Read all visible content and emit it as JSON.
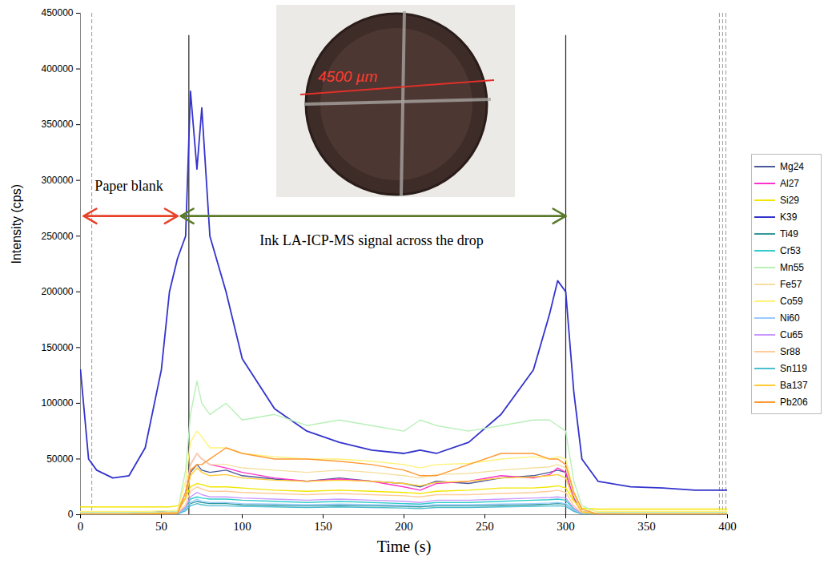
{
  "chart_data": {
    "type": "line",
    "xlabel": "Time (s)",
    "ylabel": "Intensity (cps)",
    "xlim": [
      0,
      400
    ],
    "xticks": [
      0,
      50,
      100,
      150,
      200,
      250,
      300,
      350,
      400
    ],
    "ylim": [
      0,
      450000
    ],
    "yticks": [
      0,
      50000,
      100000,
      150000,
      200000,
      250000,
      300000,
      350000,
      400000,
      450000
    ],
    "grid": false,
    "legend": "right",
    "x": [
      0,
      5,
      10,
      20,
      30,
      40,
      50,
      55,
      60,
      65,
      68,
      72,
      75,
      80,
      90,
      100,
      120,
      140,
      160,
      180,
      200,
      210,
      220,
      240,
      260,
      280,
      290,
      295,
      300,
      305,
      310,
      320,
      340,
      360,
      380,
      400
    ],
    "series": [
      {
        "name": "Mg24",
        "color": "#4b5a9b",
        "values": [
          500,
          500,
          500,
          500,
          800,
          1500,
          3000,
          2000,
          3000,
          15000,
          38000,
          45000,
          40000,
          38000,
          40000,
          35000,
          32000,
          30000,
          33000,
          30000,
          28000,
          25000,
          30000,
          28000,
          33000,
          35000,
          38000,
          40000,
          38000,
          15000,
          3000,
          800,
          500,
          500,
          500,
          500
        ]
      },
      {
        "name": "Al27",
        "color": "#ff33cc",
        "values": [
          300,
          300,
          300,
          300,
          500,
          1000,
          2000,
          2000,
          3000,
          20000,
          45000,
          55000,
          50000,
          45000,
          42000,
          38000,
          33000,
          30000,
          32000,
          30000,
          25000,
          22000,
          28000,
          30000,
          35000,
          33000,
          36000,
          42000,
          38000,
          14000,
          2000,
          500,
          300,
          300,
          300,
          300
        ]
      },
      {
        "name": "Si29",
        "color": "#f2e600",
        "values": [
          7000,
          7000,
          7000,
          7000,
          7000,
          7000,
          7000,
          7000,
          8000,
          15000,
          25000,
          28000,
          27000,
          25000,
          25000,
          24000,
          22000,
          21000,
          22000,
          21000,
          20000,
          19000,
          21000,
          22000,
          24000,
          24000,
          25000,
          26000,
          24000,
          12000,
          6000,
          5000,
          5000,
          5000,
          5000,
          5000
        ]
      },
      {
        "name": "K39",
        "color": "#3333cc",
        "values": [
          130000,
          50000,
          40000,
          33000,
          35000,
          60000,
          130000,
          200000,
          230000,
          250000,
          380000,
          310000,
          365000,
          250000,
          200000,
          140000,
          95000,
          75000,
          65000,
          58000,
          55000,
          58000,
          55000,
          65000,
          90000,
          130000,
          180000,
          210000,
          200000,
          110000,
          50000,
          30000,
          25000,
          24000,
          22000,
          22000
        ]
      },
      {
        "name": "Ti49",
        "color": "#339999",
        "values": [
          200,
          200,
          200,
          200,
          200,
          300,
          500,
          500,
          800,
          5000,
          10000,
          12000,
          11000,
          10000,
          10000,
          9000,
          8500,
          8000,
          8500,
          8000,
          7500,
          7000,
          8000,
          8000,
          8500,
          9000,
          9500,
          10000,
          9500,
          4000,
          800,
          200,
          200,
          200,
          200,
          200
        ]
      },
      {
        "name": "Cr53",
        "color": "#33cccc",
        "values": [
          300,
          300,
          300,
          300,
          300,
          500,
          800,
          800,
          1200,
          6000,
          14000,
          16000,
          15000,
          14000,
          14000,
          13000,
          12000,
          11000,
          12000,
          11000,
          10000,
          9500,
          11000,
          11000,
          12000,
          13000,
          13500,
          14000,
          13000,
          5000,
          1000,
          300,
          300,
          300,
          300,
          300
        ]
      },
      {
        "name": "Mn55",
        "color": "#b8f0b8",
        "values": [
          2000,
          2000,
          2000,
          2000,
          2000,
          2000,
          2500,
          2500,
          3000,
          40000,
          90000,
          120000,
          100000,
          90000,
          100000,
          85000,
          90000,
          80000,
          85000,
          80000,
          75000,
          85000,
          80000,
          75000,
          80000,
          85000,
          85000,
          80000,
          75000,
          30000,
          8000,
          2000,
          2000,
          2000,
          2000,
          2000
        ]
      },
      {
        "name": "Fe57",
        "color": "#f5dfa0",
        "values": [
          1000,
          1000,
          1000,
          1000,
          1000,
          1200,
          1500,
          1500,
          2000,
          20000,
          45000,
          55000,
          50000,
          45000,
          45000,
          42000,
          40000,
          38000,
          40000,
          38000,
          35000,
          33000,
          36000,
          37000,
          40000,
          42000,
          43000,
          45000,
          42000,
          18000,
          3000,
          1000,
          1000,
          1000,
          1000,
          1000
        ]
      },
      {
        "name": "Co59",
        "color": "#fff27a",
        "values": [
          3000,
          3000,
          3000,
          3000,
          3000,
          3000,
          3500,
          3500,
          4000,
          30000,
          65000,
          75000,
          70000,
          60000,
          60000,
          55000,
          52000,
          50000,
          50000,
          48000,
          45000,
          42000,
          45000,
          46000,
          50000,
          52000,
          50000,
          52000,
          50000,
          20000,
          5000,
          3000,
          3000,
          3000,
          3000,
          3000
        ]
      },
      {
        "name": "Ni60",
        "color": "#99ccff",
        "values": [
          300,
          300,
          300,
          300,
          300,
          400,
          600,
          600,
          900,
          5000,
          11000,
          14000,
          12000,
          11000,
          11000,
          10000,
          9500,
          9000,
          9500,
          9000,
          8500,
          8000,
          9000,
          9000,
          9500,
          10000,
          10500,
          11000,
          10000,
          4000,
          800,
          300,
          300,
          300,
          300,
          300
        ]
      },
      {
        "name": "Cu65",
        "color": "#cc99ff",
        "values": [
          400,
          400,
          400,
          400,
          400,
          500,
          800,
          800,
          1200,
          7000,
          16000,
          20000,
          18000,
          16000,
          16000,
          15000,
          14000,
          13000,
          14000,
          13000,
          12000,
          11000,
          13000,
          13000,
          14000,
          15000,
          15500,
          16000,
          15000,
          6000,
          1200,
          400,
          400,
          400,
          400,
          400
        ]
      },
      {
        "name": "Sr88",
        "color": "#ffcc99",
        "values": [
          500,
          500,
          500,
          500,
          500,
          700,
          1000,
          1000,
          1500,
          9000,
          21000,
          25000,
          23000,
          21000,
          21000,
          20000,
          19000,
          18000,
          19000,
          18000,
          17000,
          16000,
          18000,
          18000,
          19000,
          20000,
          21000,
          22000,
          20000,
          8000,
          1500,
          500,
          500,
          500,
          500,
          500
        ]
      },
      {
        "name": "Sn119",
        "color": "#4bbfd0",
        "values": [
          200,
          200,
          200,
          200,
          200,
          300,
          400,
          400,
          600,
          3500,
          8000,
          10000,
          9000,
          8000,
          8000,
          7500,
          7000,
          6500,
          7000,
          6500,
          6000,
          5500,
          6500,
          6500,
          7000,
          7500,
          7800,
          8000,
          7500,
          3000,
          600,
          200,
          200,
          200,
          200,
          200
        ]
      },
      {
        "name": "Ba137",
        "color": "#ffcc33",
        "values": [
          800,
          800,
          800,
          800,
          800,
          1000,
          1500,
          1500,
          2000,
          15000,
          35000,
          42000,
          38000,
          35000,
          36000,
          33000,
          31000,
          30000,
          31000,
          30000,
          28000,
          26000,
          29000,
          30000,
          33000,
          34000,
          35000,
          36000,
          33000,
          13000,
          2500,
          800,
          800,
          800,
          800,
          800
        ]
      },
      {
        "name": "Pb206",
        "color": "#ff9933",
        "values": [
          500,
          500,
          500,
          500,
          500,
          600,
          800,
          800,
          1200,
          20000,
          40000,
          45000,
          45000,
          50000,
          60000,
          55000,
          50000,
          50000,
          48000,
          45000,
          40000,
          35000,
          35000,
          45000,
          55000,
          55000,
          50000,
          50000,
          45000,
          20000,
          5000,
          500,
          500,
          500,
          500,
          500
        ]
      }
    ],
    "vertical_lines": [
      {
        "x": 67,
        "y_top": 430000,
        "line_style": "solid"
      },
      {
        "x": 300,
        "y_top": 430000,
        "line_style": "solid"
      },
      {
        "x": 7,
        "line_style": "dashed"
      },
      {
        "x": 395,
        "line_style": "dashed"
      },
      {
        "x": 397,
        "line_style": "dashed"
      },
      {
        "x": 399,
        "line_style": "dashed"
      }
    ],
    "arrows": [
      {
        "x1": 2,
        "x2": 60,
        "y": 268000,
        "color": "#e8432a"
      },
      {
        "x1": 62,
        "x2": 300,
        "y": 268000,
        "color": "#5a7a2a"
      }
    ],
    "annotations": [
      {
        "text": "Paper blank",
        "x": 30,
        "y": 295000
      },
      {
        "text": "Ink LA-ICP-MS signal across the drop",
        "x": 180,
        "y": 246000
      }
    ],
    "inset_label": "4500 µm"
  }
}
